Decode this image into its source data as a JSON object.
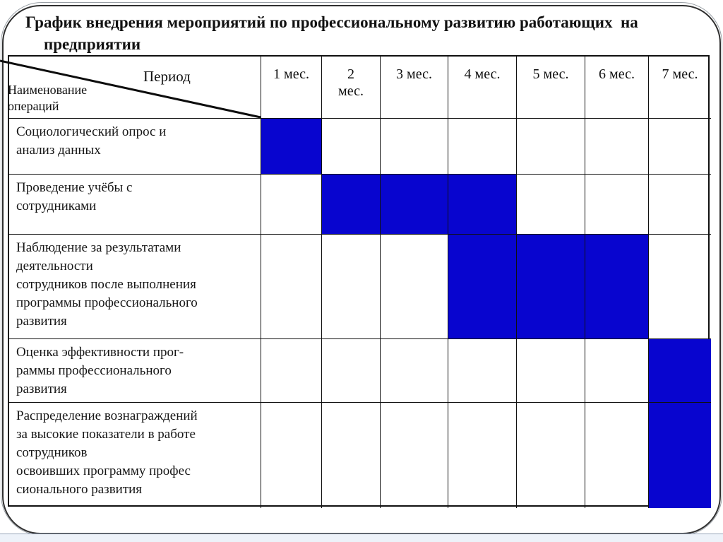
{
  "slide": {
    "title": "График внедрения мероприятий по профессиональному развитию работающих  на\nпредприятии"
  },
  "table": {
    "corner": {
      "period_label": "Период",
      "operations_label": "Наименование\nопераций"
    },
    "month_headers": [
      "1 мес.",
      "2\nмес.",
      "3 мес.",
      "4 мес.",
      "5 мес.",
      "6 мес.",
      "7 мес."
    ],
    "rows": [
      {
        "name": "Социологический опрос и\nанализ данных",
        "filled_months": [
          1
        ]
      },
      {
        "name": "Проведение учёбы с\nсотрудниками",
        "filled_months": [
          2,
          3,
          4
        ]
      },
      {
        "name": "Наблюдение за результатами\nдеятельности\nсотрудников после выполнения\nпрограммы профессионального\nразвития",
        "filled_months": [
          4,
          5,
          6
        ]
      },
      {
        "name": "Оценка эффективности прог-\nраммы профессионального\nразвития",
        "filled_months": [
          7
        ]
      },
      {
        "name": "Распределение вознаграждений\nза высокие показатели в работе\nсотрудников\nосвоивших программу профес\nсионального развития",
        "filled_months": [
          7
        ]
      }
    ]
  },
  "colors": {
    "bar_fill": "#0805CF",
    "grid_line": "#101010",
    "frame_line": "#2f2f2f",
    "footer_bg": "#edf2f9"
  },
  "chart_data": {
    "type": "table",
    "subtype": "gantt",
    "title": "График внедрения мероприятий по профессиональному развитию работающих на предприятии",
    "columns": [
      "Период",
      "1 мес.",
      "2 мес.",
      "3 мес.",
      "4 мес.",
      "5 мес.",
      "6 мес.",
      "7 мес."
    ],
    "row_header_label": "Наименование операций",
    "tasks": [
      {
        "name": "Социологический опрос и анализ данных",
        "months": [
          1
        ]
      },
      {
        "name": "Проведение учёбы с сотрудниками",
        "months": [
          2,
          3,
          4
        ]
      },
      {
        "name": "Наблюдение за результатами деятельности сотрудников после выполнения программы профессионального развития",
        "months": [
          4,
          5,
          6
        ]
      },
      {
        "name": "Оценка эффективности программы профессионального развития",
        "months": [
          7
        ]
      },
      {
        "name": "Распределение вознаграждений за высокие показатели в работе сотрудников освоивших программу профессионального развития",
        "months": [
          7
        ]
      }
    ],
    "legend": "filled blue cell = мероприятие выполняется в этом месяце",
    "grid": true,
    "fill_color": "#0805CF"
  }
}
